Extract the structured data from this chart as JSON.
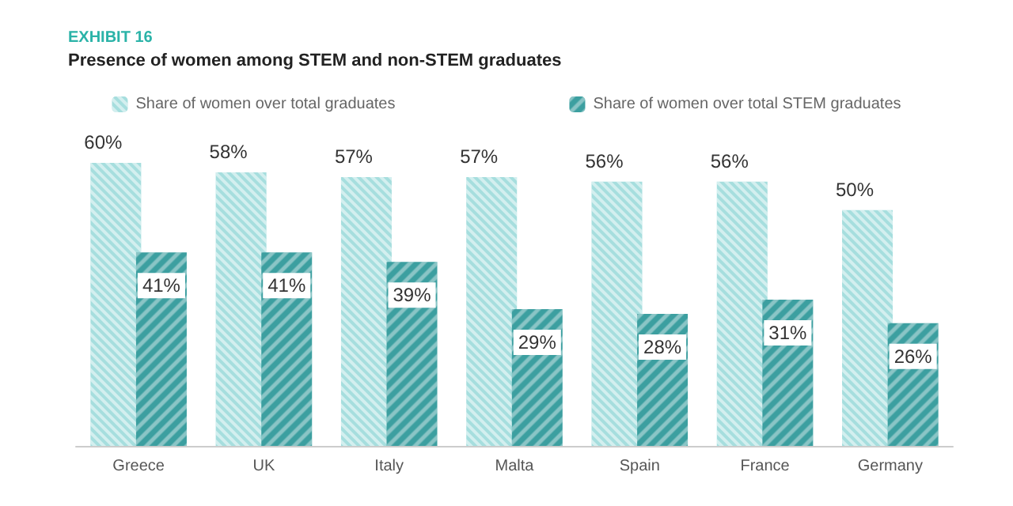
{
  "chart_data": {
    "type": "bar",
    "title": "EXHIBIT 16",
    "subtitle": "Presence of women among STEM and non-STEM graduates",
    "categories": [
      "Greece",
      "UK",
      "Italy",
      "Malta",
      "Spain",
      "France",
      "Germany"
    ],
    "series": [
      {
        "name": "Share of women over total graduates",
        "color": "#a6dede",
        "values": [
          60,
          58,
          57,
          57,
          56,
          56,
          50
        ],
        "value_labels": [
          "60%",
          "58%",
          "57%",
          "57%",
          "56%",
          "56%",
          "50%"
        ]
      },
      {
        "name": "Share of women over total STEM graduates",
        "color": "#3c9fa0",
        "values": [
          41,
          41,
          39,
          29,
          28,
          31,
          26
        ],
        "value_labels": [
          "41%",
          "41%",
          "39%",
          "29%",
          "28%",
          "31%",
          "26%"
        ]
      }
    ],
    "legend": "top"
  }
}
